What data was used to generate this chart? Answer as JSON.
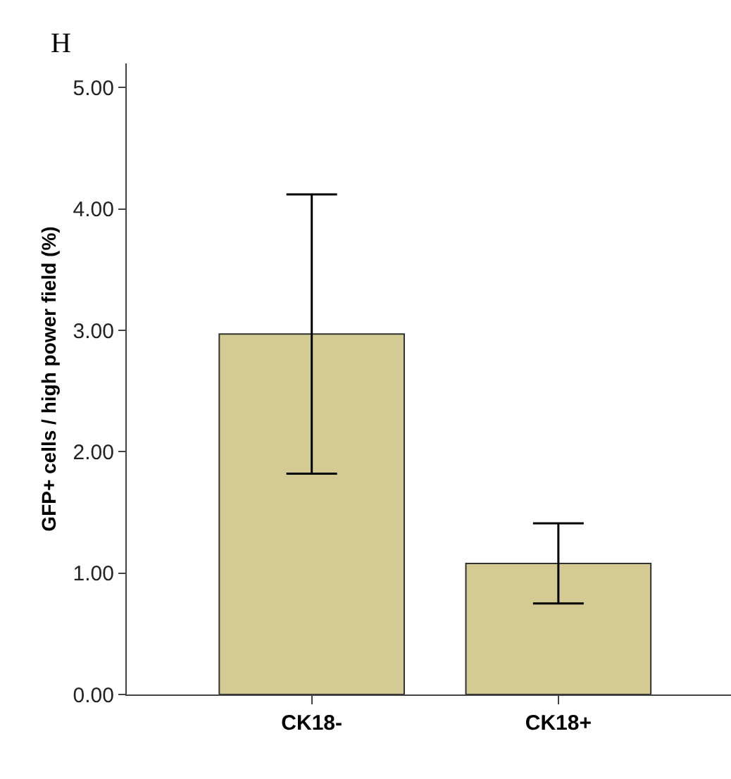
{
  "chart_data": {
    "type": "bar",
    "ylabel": "GFP+ cells / high power field (%)",
    "annotations": [
      "H"
    ],
    "categories": [
      "CK18-",
      "CK18+"
    ],
    "values": [
      2.97,
      1.08
    ],
    "errors": [
      [
        1.82,
        4.12
      ],
      [
        0.75,
        1.41
      ]
    ],
    "color": "#d3cb93",
    "ylim": [
      0,
      5.2
    ],
    "yticks": [
      {
        "value": 0,
        "label": "0.00"
      },
      {
        "value": 1,
        "label": "1.00"
      },
      {
        "value": 2,
        "label": "2.00"
      },
      {
        "value": 3,
        "label": "3.00"
      },
      {
        "value": 4,
        "label": "4.00"
      },
      {
        "value": 5,
        "label": "5.00"
      }
    ]
  }
}
